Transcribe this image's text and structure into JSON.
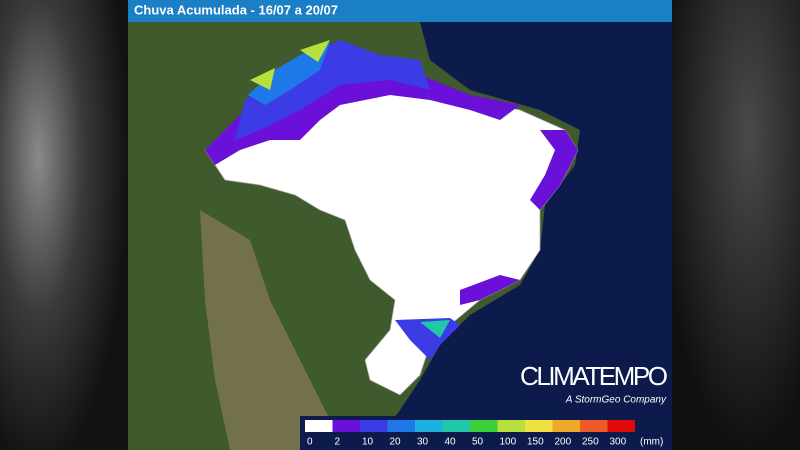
{
  "header": {
    "title": "Chuva Acumulada - 16/07 a 20/07"
  },
  "brand": {
    "name": "CLIMATEMPO",
    "tagline": "A StormGeo Company"
  },
  "legend": {
    "unit": "(mm)",
    "items": [
      {
        "label": 0,
        "color": "#ffffff"
      },
      {
        "label": 2,
        "color": "#6a10d8"
      },
      {
        "label": 10,
        "color": "#3c3ce6"
      },
      {
        "label": 20,
        "color": "#1f78e8"
      },
      {
        "label": 30,
        "color": "#1eb0e0"
      },
      {
        "label": 40,
        "color": "#20c8a8"
      },
      {
        "label": 50,
        "color": "#3ccf3c"
      },
      {
        "label": 100,
        "color": "#b8e03c"
      },
      {
        "label": 150,
        "color": "#f0e040"
      },
      {
        "label": 200,
        "color": "#f0a828"
      },
      {
        "label": 250,
        "color": "#f05a28"
      },
      {
        "label": 300,
        "color": "#e00a0a"
      }
    ]
  }
}
